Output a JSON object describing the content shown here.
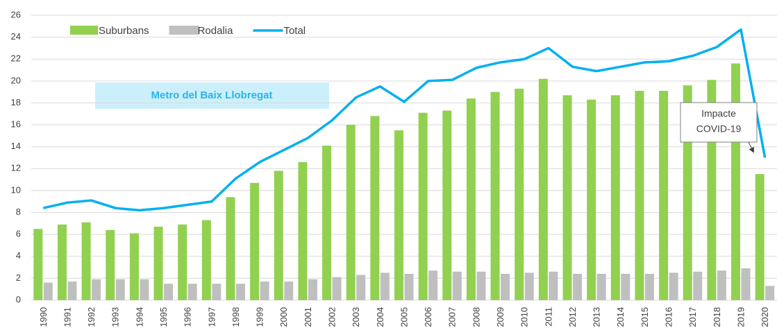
{
  "chart_data": {
    "type": "bar_line",
    "categories": [
      "1990",
      "1991",
      "1992",
      "1993",
      "1994",
      "1995",
      "1996",
      "1997",
      "1998",
      "1999",
      "2000",
      "2001",
      "2002",
      "2003",
      "2004",
      "2005",
      "2006",
      "2007",
      "2008",
      "2009",
      "2010",
      "2011",
      "2012",
      "2013",
      "2014",
      "2015",
      "2016",
      "2017",
      "2018",
      "2019",
      "2020"
    ],
    "series": [
      {
        "name": "Suburbans",
        "color": "#92d050",
        "kind": "bar",
        "values": [
          6.5,
          6.9,
          7.1,
          6.4,
          6.1,
          6.7,
          6.9,
          7.3,
          9.4,
          10.7,
          11.8,
          12.6,
          14.1,
          16.0,
          16.8,
          15.5,
          17.1,
          17.3,
          18.4,
          19.0,
          19.3,
          20.2,
          18.7,
          18.3,
          18.7,
          19.1,
          19.1,
          19.6,
          20.1,
          21.6,
          11.5
        ]
      },
      {
        "name": "Rodalia",
        "color": "#bfbfbf",
        "kind": "bar",
        "values": [
          1.6,
          1.7,
          1.9,
          1.9,
          1.9,
          1.5,
          1.5,
          1.5,
          1.5,
          1.7,
          1.7,
          1.9,
          2.1,
          2.3,
          2.5,
          2.4,
          2.7,
          2.6,
          2.6,
          2.4,
          2.5,
          2.6,
          2.4,
          2.4,
          2.4,
          2.4,
          2.5,
          2.6,
          2.7,
          2.9,
          1.3
        ]
      },
      {
        "name": "Total",
        "color": "#00b0f0",
        "kind": "line",
        "values": [
          8.4,
          8.9,
          9.1,
          8.4,
          8.2,
          8.4,
          8.7,
          9.0,
          11.1,
          12.6,
          13.7,
          14.8,
          16.4,
          18.5,
          19.5,
          18.1,
          20.0,
          20.1,
          21.2,
          21.7,
          22.0,
          23.0,
          21.3,
          20.9,
          21.3,
          21.7,
          21.8,
          22.3,
          23.1,
          24.7,
          13.0
        ]
      }
    ],
    "ylim": [
      0,
      26
    ],
    "yticks": [
      0,
      2,
      4,
      6,
      8,
      10,
      12,
      14,
      16,
      18,
      20,
      22,
      24,
      26
    ],
    "grid": true,
    "legend": "top-left",
    "annotations": [
      {
        "text": [
          "Metro del Baix Llobregat"
        ]
      },
      {
        "text": [
          "Impacte",
          "COVID-19"
        ]
      }
    ]
  }
}
